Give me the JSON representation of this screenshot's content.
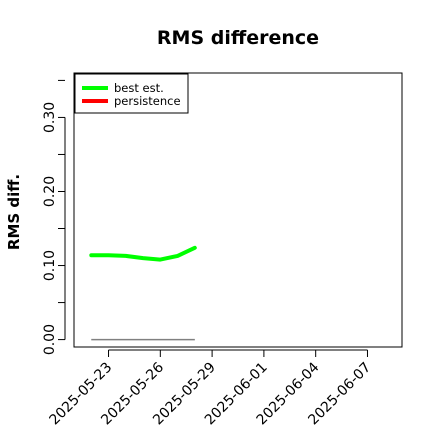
{
  "chart_data": {
    "type": "line",
    "title": "RMS difference",
    "xlabel": "",
    "ylabel": "RMS diff.",
    "x_ticks": [
      "2025-05-23",
      "2025-05-26",
      "2025-05-29",
      "2025-06-01",
      "2025-06-04",
      "2025-06-07"
    ],
    "xlim": [
      "2025-05-21",
      "2025-06-09"
    ],
    "ylim": [
      -0.01,
      0.36
    ],
    "y_ticks": [
      0.0,
      0.1,
      0.2,
      0.3
    ],
    "y_tick_labels": [
      "0.00",
      "0.10",
      "0.20",
      "0.30"
    ],
    "legend_position": "top-left",
    "series": [
      {
        "name": "best est.",
        "color": "#00ff00",
        "x": [
          "2025-05-22",
          "2025-05-23",
          "2025-05-24",
          "2025-05-25",
          "2025-05-26",
          "2025-05-27",
          "2025-05-28"
        ],
        "values": [
          0.114,
          0.114,
          0.113,
          0.11,
          0.108,
          0.113,
          0.124
        ]
      },
      {
        "name": "persistence",
        "color": "#ff0000",
        "x": [],
        "values": []
      }
    ],
    "reference_line": {
      "color": "#808080",
      "x": [
        "2025-05-22",
        "2025-05-28"
      ],
      "values": [
        0.0,
        0.0
      ]
    }
  }
}
